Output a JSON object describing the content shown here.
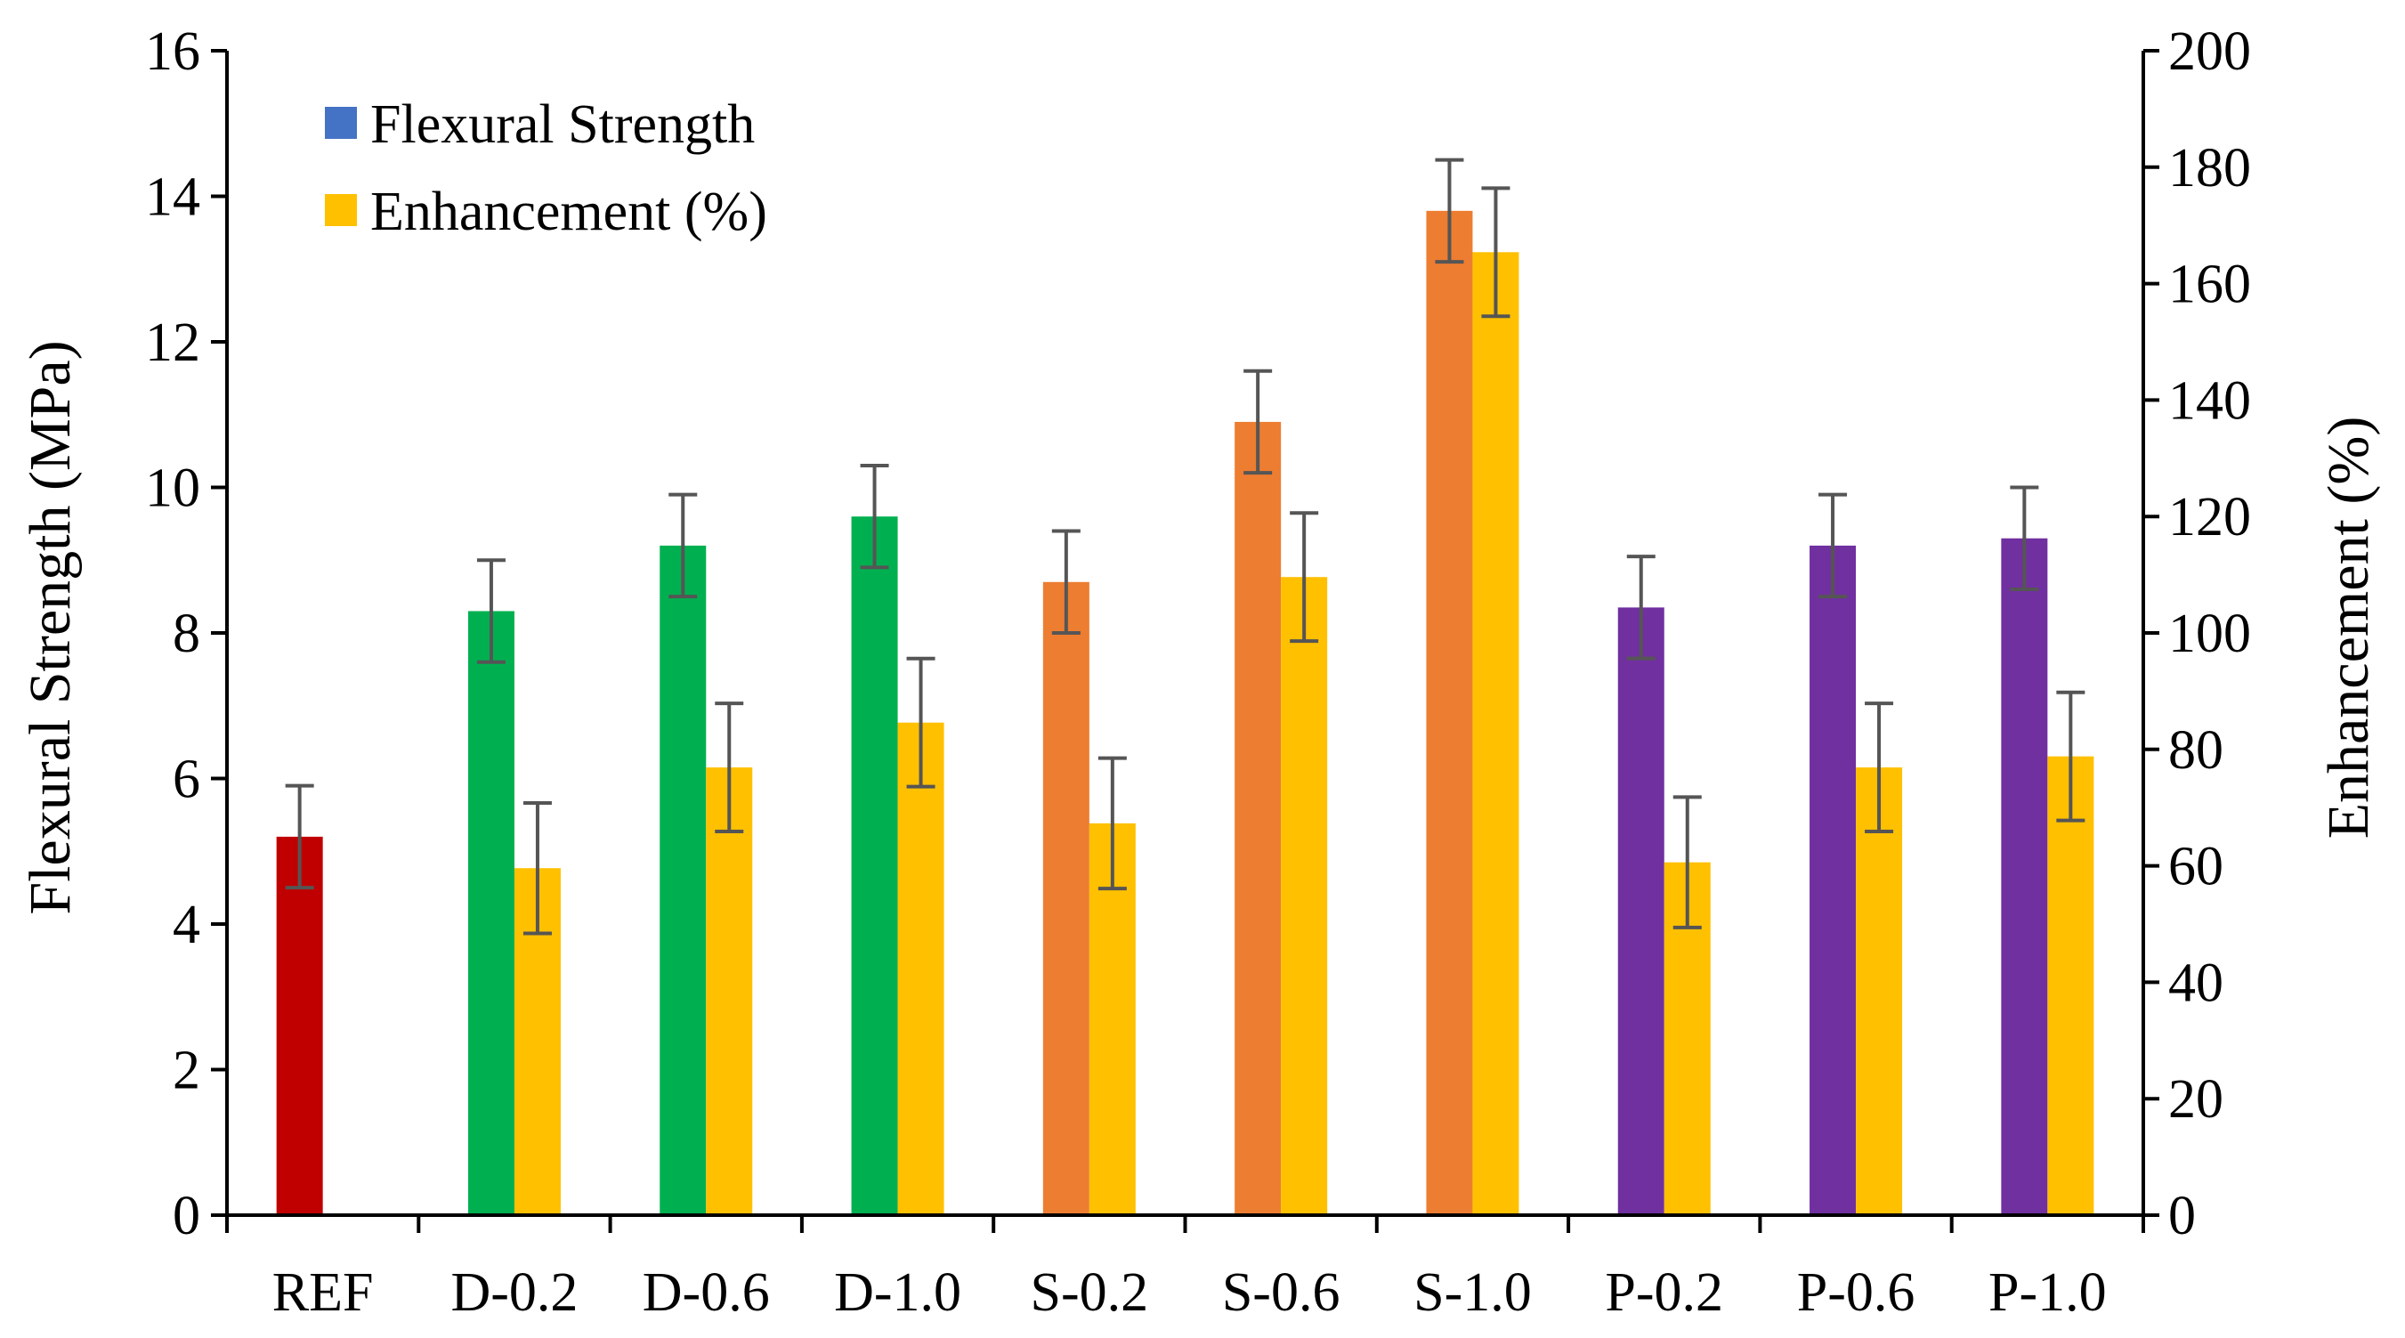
{
  "chart_data": {
    "type": "bar",
    "categories": [
      "REF",
      "D-0.2",
      "D-0.6",
      "D-1.0",
      "S-0.2",
      "S-0.6",
      "S-1.0",
      "P-0.2",
      "P-0.6",
      "P-1.0"
    ],
    "series": [
      {
        "name": "Flexural Strength",
        "axis": "left",
        "legend_color": "#4472C4",
        "colors": [
          "#C00000",
          "#00B050",
          "#00B050",
          "#00B050",
          "#ED7D31",
          "#ED7D31",
          "#ED7D31",
          "#7030A0",
          "#7030A0",
          "#7030A0"
        ],
        "values": [
          5.2,
          8.3,
          9.2,
          9.6,
          8.7,
          10.9,
          13.8,
          8.35,
          9.2,
          9.3
        ],
        "errors": [
          0.7,
          0.7,
          0.7,
          0.7,
          0.7,
          0.7,
          0.7,
          0.7,
          0.7,
          0.7
        ]
      },
      {
        "name": "Enhancement (%)",
        "axis": "right",
        "legend_color": "#FFC000",
        "colors": [
          "#FFC000",
          "#FFC000",
          "#FFC000",
          "#FFC000",
          "#FFC000",
          "#FFC000",
          "#FFC000",
          "#FFC000",
          "#FFC000",
          "#FFC000"
        ],
        "values": [
          null,
          59.6,
          76.9,
          84.6,
          67.3,
          109.6,
          165.4,
          60.6,
          76.9,
          78.8
        ],
        "errors": [
          null,
          11.2,
          11,
          11,
          11.2,
          11,
          11,
          11.2,
          11,
          11
        ]
      }
    ],
    "ylabel": "Flexural Strength (MPa)",
    "ylim": [
      0,
      16
    ],
    "yticks": [
      0,
      2,
      4,
      6,
      8,
      10,
      12,
      14,
      16
    ],
    "y2label": "Enhancement (%)",
    "y2lim": [
      0,
      200
    ],
    "y2ticks": [
      0,
      20,
      40,
      60,
      80,
      100,
      120,
      140,
      160,
      180,
      200
    ],
    "xlabel": "",
    "legend": [
      "Flexural Strength",
      "Enhancement (%)"
    ],
    "legend_position": "top-left",
    "grid": false
  }
}
